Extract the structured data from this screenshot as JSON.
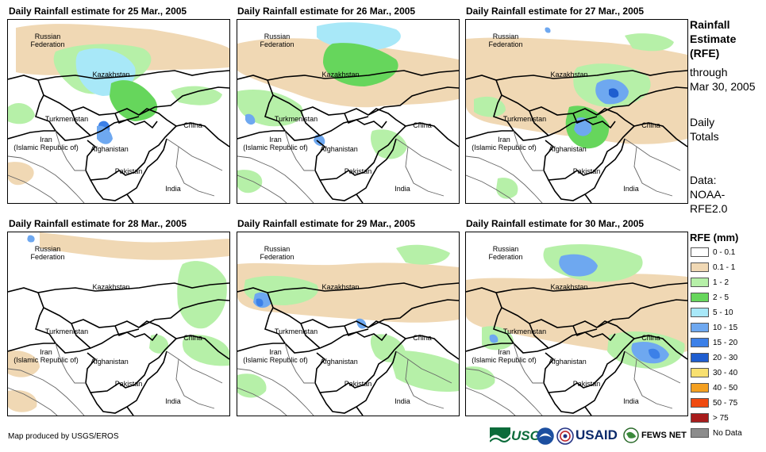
{
  "panels": [
    {
      "title": "Daily Rainfall estimate for 25 Mar., 2005"
    },
    {
      "title": "Daily Rainfall estimate for 26 Mar., 2005"
    },
    {
      "title": "Daily Rainfall estimate for 27 Mar., 2005"
    },
    {
      "title": "Daily Rainfall estimate for 28 Mar., 2005"
    },
    {
      "title": "Daily Rainfall estimate for 29 Mar., 2005"
    },
    {
      "title": "Daily Rainfall estimate for 30 Mar., 2005"
    }
  ],
  "map_labels": {
    "russia_1": "Russian",
    "russia_2": "Federation",
    "kazakhstan": "Kazakhstan",
    "turkmenistan": "Turkmenistan",
    "china": "China",
    "iran_1": "Iran",
    "iran_2": "(Islamic Republic of)",
    "afghanistan": "Afghanistan",
    "pakistan": "Pakistan",
    "india": "India"
  },
  "sidebar": {
    "heading_1": "Rainfall",
    "heading_2": "Estimate",
    "heading_3": "(RFE)",
    "through": "through",
    "date": "Mar 30, 2005",
    "daily": "Daily",
    "totals": "Totals",
    "data_label": "Data:",
    "source_1": "NOAA-",
    "source_2": "RFE2.0"
  },
  "legend": {
    "title": "RFE (mm)",
    "items": [
      {
        "label": "0 - 0.1",
        "color": "#ffffff"
      },
      {
        "label": "0.1 - 1",
        "color": "#f0d8b4"
      },
      {
        "label": "1 - 2",
        "color": "#b6f0a8"
      },
      {
        "label": "2 - 5",
        "color": "#66d65c"
      },
      {
        "label": "5 - 10",
        "color": "#a8e8f8"
      },
      {
        "label": "10 - 15",
        "color": "#6ea8f0"
      },
      {
        "label": "15 - 20",
        "color": "#3c80e8"
      },
      {
        "label": "20 - 30",
        "color": "#1f5ed0"
      },
      {
        "label": "30 - 40",
        "color": "#f8e070"
      },
      {
        "label": "40 - 50",
        "color": "#f4a020"
      },
      {
        "label": "50 - 75",
        "color": "#f04a10"
      },
      {
        "label": "> 75",
        "color": "#a81c1c"
      },
      {
        "label": "No Data",
        "color": "#8c8c8c"
      }
    ]
  },
  "footer": {
    "credit": "Map produced by USGS/EROS",
    "usgs": "USGS",
    "usaid": "USAID",
    "fewsnet": "FEWS NET"
  }
}
